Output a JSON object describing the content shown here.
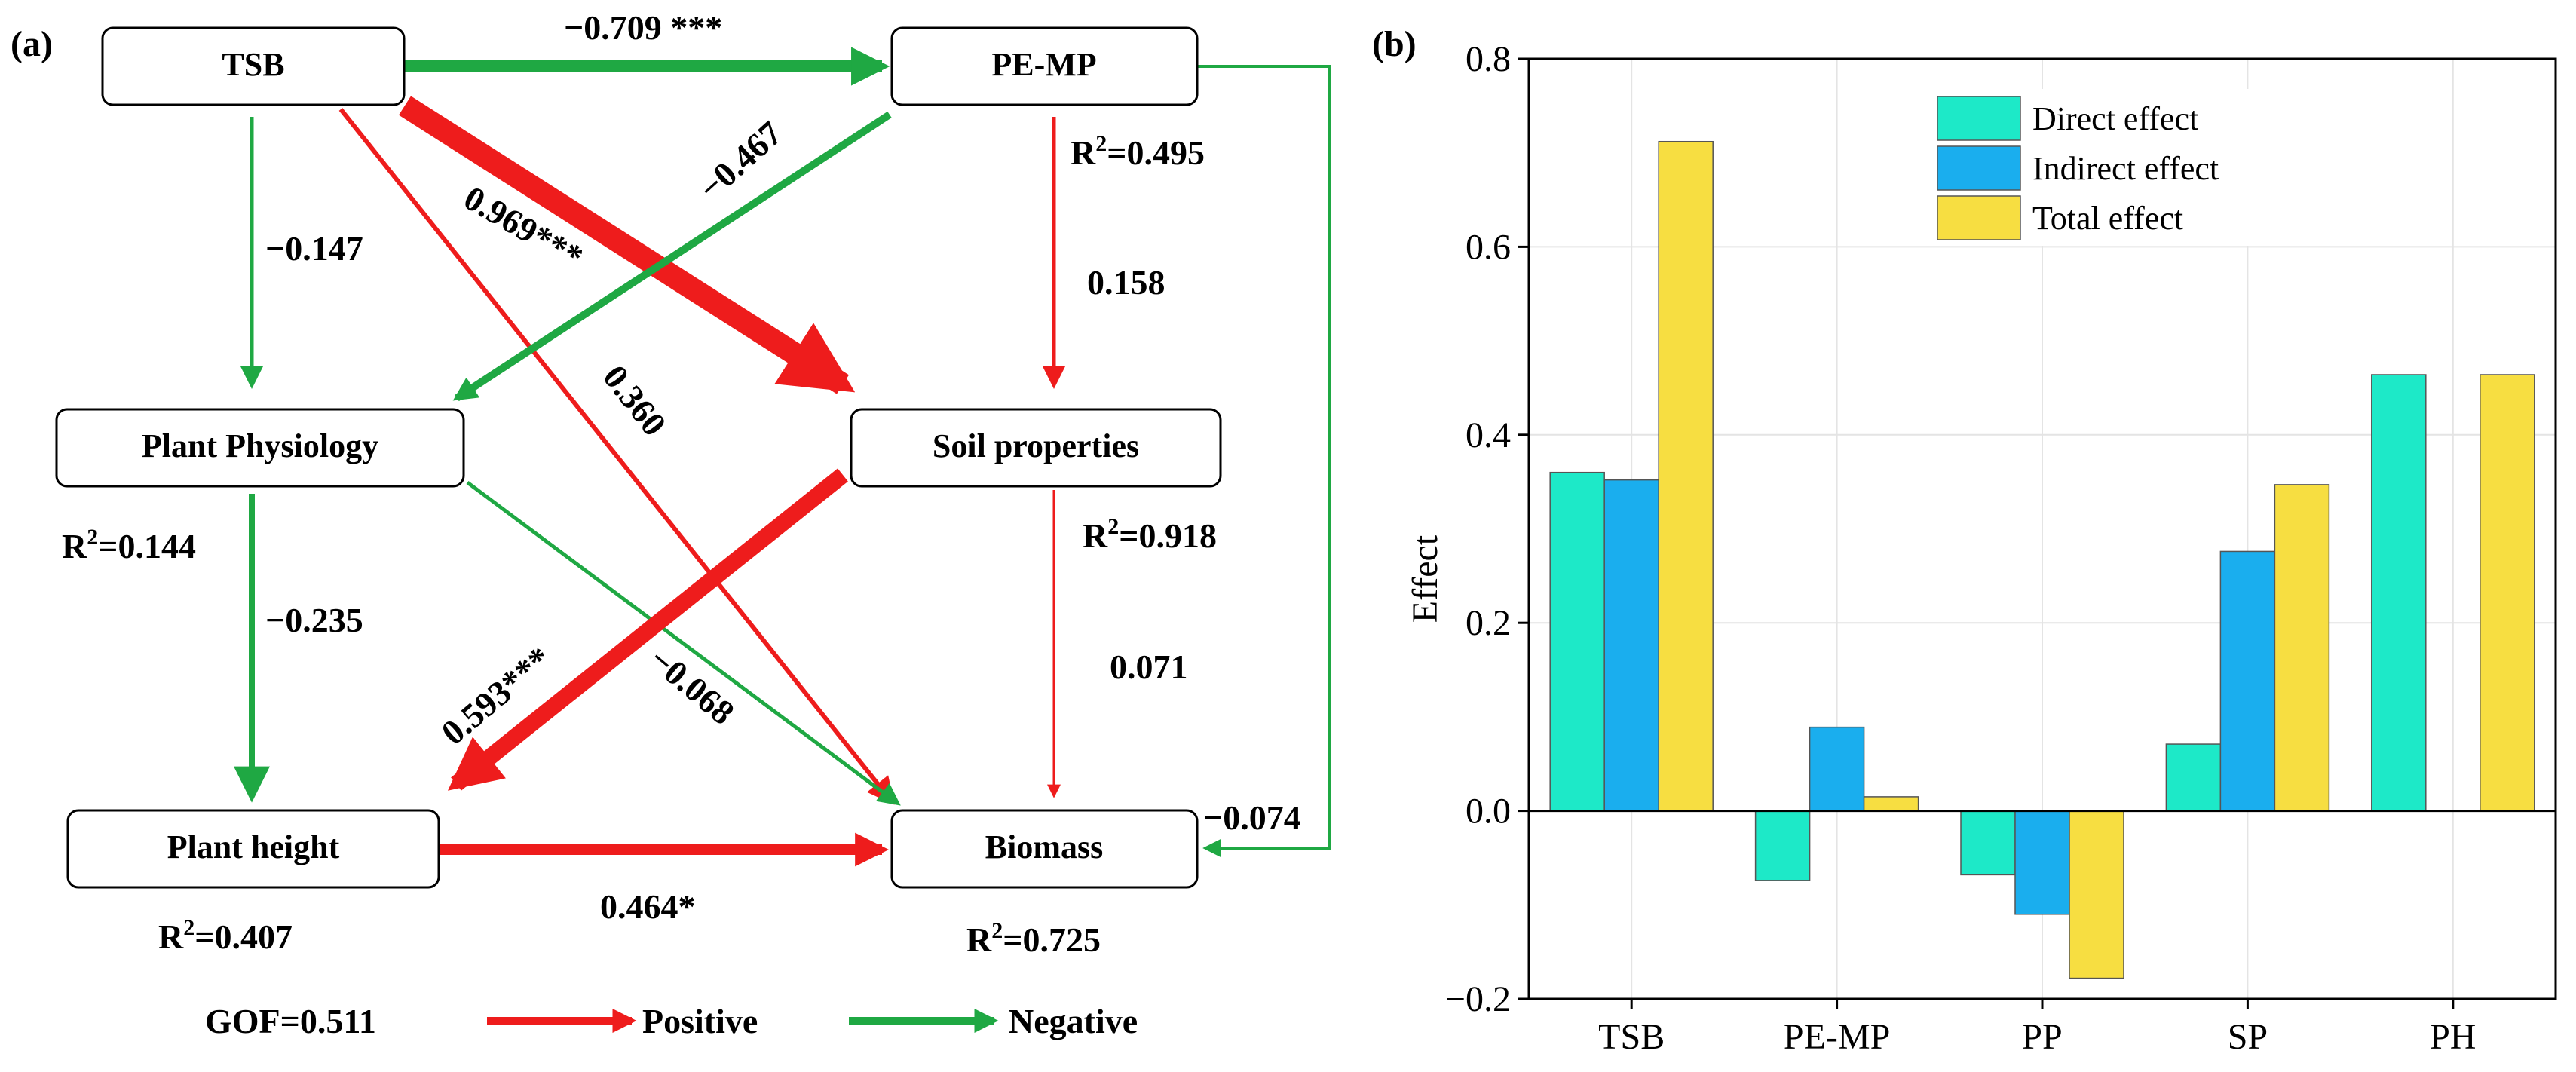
{
  "panel_a": {
    "label": "(a)",
    "nodes": {
      "tsb": "TSB",
      "pemp": "PE-MP",
      "physiology": "Plant Physiology",
      "soil": "Soil properties",
      "height": "Plant height",
      "biomass": "Biomass"
    },
    "r2": {
      "pemp": "0.495",
      "physiology": "0.144",
      "soil": "0.918",
      "height": "0.407",
      "biomass": "0.725"
    },
    "paths": {
      "tsb_pemp": "−0.709 ***",
      "tsb_physiology": "−0.147",
      "tsb_soil": "0.969***",
      "tsb_biomass": "0.360",
      "pemp_physiology": "−0.467",
      "pemp_soil": "0.158",
      "pemp_biomass": "−0.074",
      "physiology_height": "−0.235",
      "physiology_biomass": "−0.068",
      "soil_height": "0.593***",
      "soil_biomass": "0.071",
      "height_biomass": "0.464*"
    },
    "gof": "GOF=0.511",
    "legend": {
      "positive": "Positive",
      "negative": "Negative"
    },
    "colors": {
      "positive": "#ee1c1c",
      "negative": "#1fa843"
    }
  },
  "chart_data": {
    "type": "bar",
    "panel_label": "(b)",
    "categories": [
      "TSB",
      "PE-MP",
      "PP",
      "SP",
      "PH"
    ],
    "series": [
      {
        "name": "Direct effect",
        "color": "#1de9c8",
        "values": [
          0.36,
          -0.074,
          -0.068,
          0.071,
          0.464
        ]
      },
      {
        "name": "Indirect effect",
        "color": "#1aaeee",
        "values": [
          0.352,
          0.089,
          -0.11,
          0.276,
          0.0
        ]
      },
      {
        "name": "Total effect",
        "color": "#f7de41",
        "values": [
          0.712,
          0.015,
          -0.178,
          0.347,
          0.464
        ]
      }
    ],
    "ylabel": "Effect",
    "xlabel": "",
    "ylim": [
      -0.2,
      0.8
    ],
    "yticks": [
      "−0.2",
      "0.0",
      "0.2",
      "0.4",
      "0.6",
      "0.8"
    ],
    "ytick_values": [
      -0.2,
      0.0,
      0.2,
      0.4,
      0.6,
      0.8
    ],
    "grid": true,
    "legend_position": "top-center"
  }
}
